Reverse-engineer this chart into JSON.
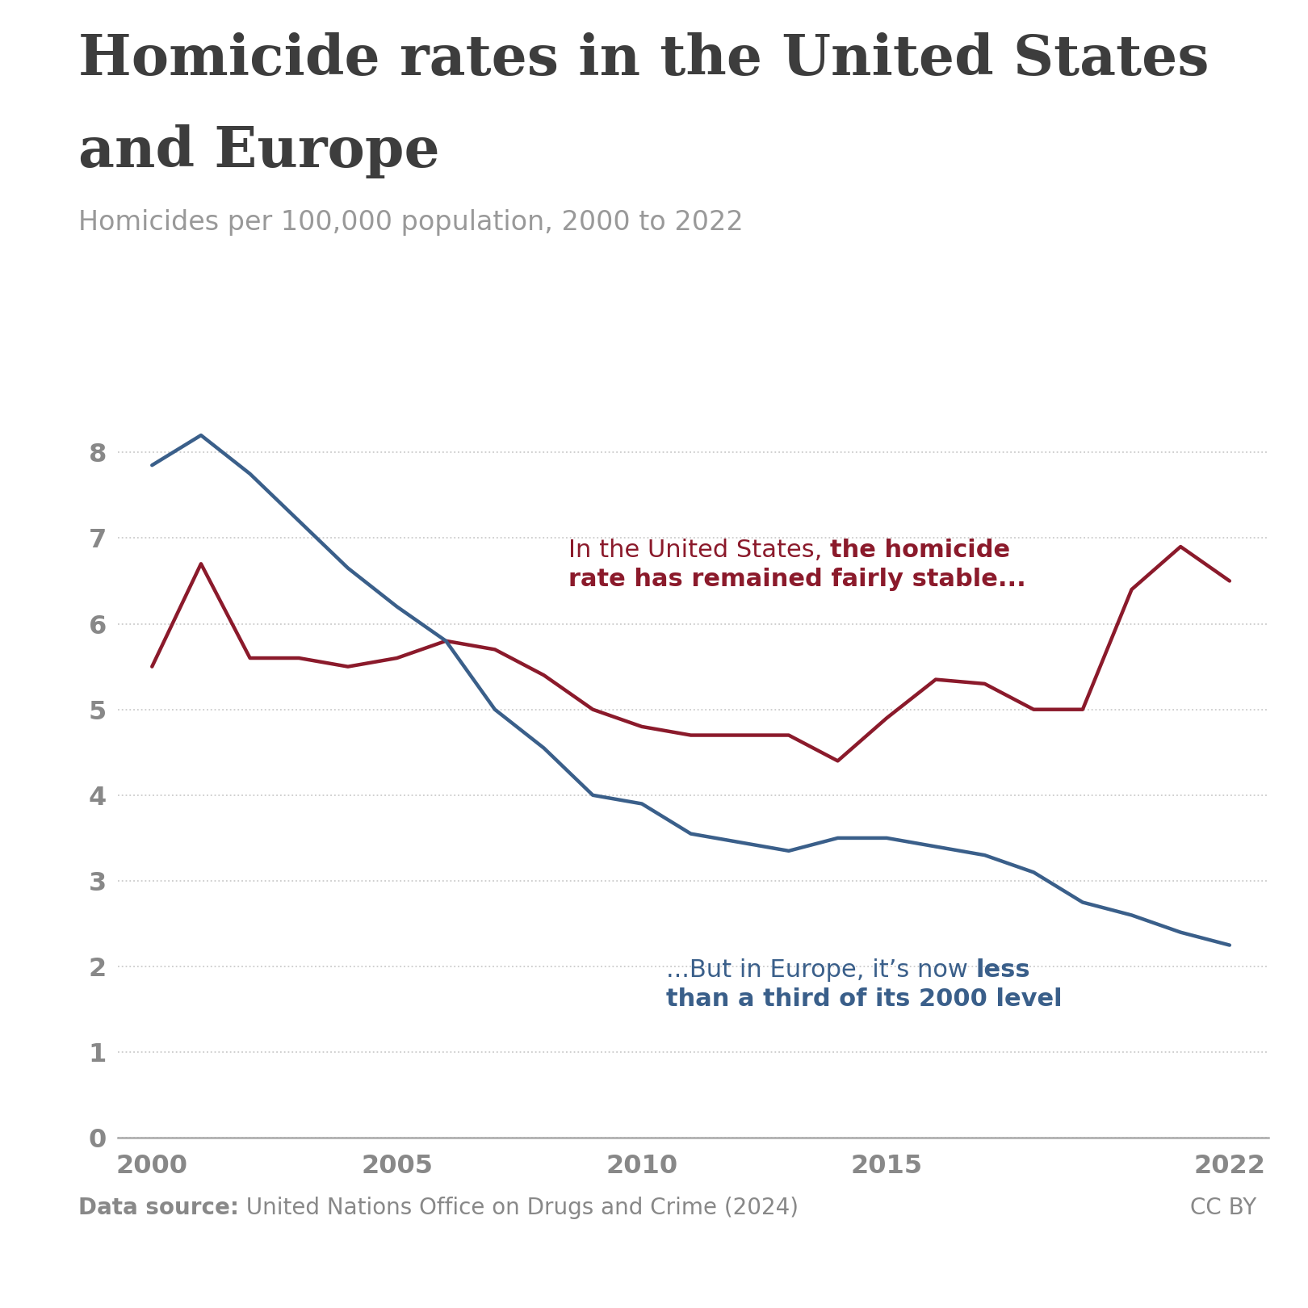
{
  "title_line1": "Homicide rates in the United States",
  "title_line2": "and Europe",
  "subtitle": "Homicides per 100,000 population, 2000 to 2022",
  "us_years": [
    2000,
    2001,
    2002,
    2003,
    2004,
    2005,
    2006,
    2007,
    2008,
    2009,
    2010,
    2011,
    2012,
    2013,
    2014,
    2015,
    2016,
    2017,
    2018,
    2019,
    2020,
    2021,
    2022
  ],
  "us_values": [
    5.5,
    6.7,
    5.6,
    5.6,
    5.5,
    5.6,
    5.8,
    5.7,
    5.4,
    5.0,
    4.8,
    4.7,
    4.7,
    4.7,
    4.4,
    4.9,
    5.35,
    5.3,
    5.0,
    5.0,
    6.4,
    6.9,
    6.5
  ],
  "eu_years": [
    2000,
    2001,
    2002,
    2003,
    2004,
    2005,
    2006,
    2007,
    2008,
    2009,
    2010,
    2011,
    2012,
    2013,
    2014,
    2015,
    2016,
    2017,
    2018,
    2019,
    2020,
    2021,
    2022
  ],
  "eu_values": [
    7.85,
    8.2,
    7.75,
    7.2,
    6.65,
    6.2,
    5.8,
    5.0,
    4.55,
    4.0,
    3.9,
    3.55,
    3.45,
    3.35,
    3.5,
    3.5,
    3.4,
    3.3,
    3.1,
    2.75,
    2.6,
    2.4,
    2.25
  ],
  "us_color": "#8B1A2B",
  "eu_color": "#3A5F8A",
  "ylim": [
    0,
    8.7
  ],
  "yticks": [
    0,
    1,
    2,
    3,
    4,
    5,
    6,
    7,
    8
  ],
  "xticks": [
    2000,
    2005,
    2010,
    2015,
    2022
  ],
  "bg_color": "#ffffff",
  "grid_color": "#cccccc",
  "title_color": "#3d3d3d",
  "subtitle_color": "#999999",
  "tick_color": "#888888",
  "footer_source_bold": "Data source:",
  "footer_source_rest": " United Nations Office on Drugs and Crime (2024)",
  "footer_license": "CC BY",
  "owid_navy": "#1a2e5a",
  "owid_red": "#c0392b"
}
